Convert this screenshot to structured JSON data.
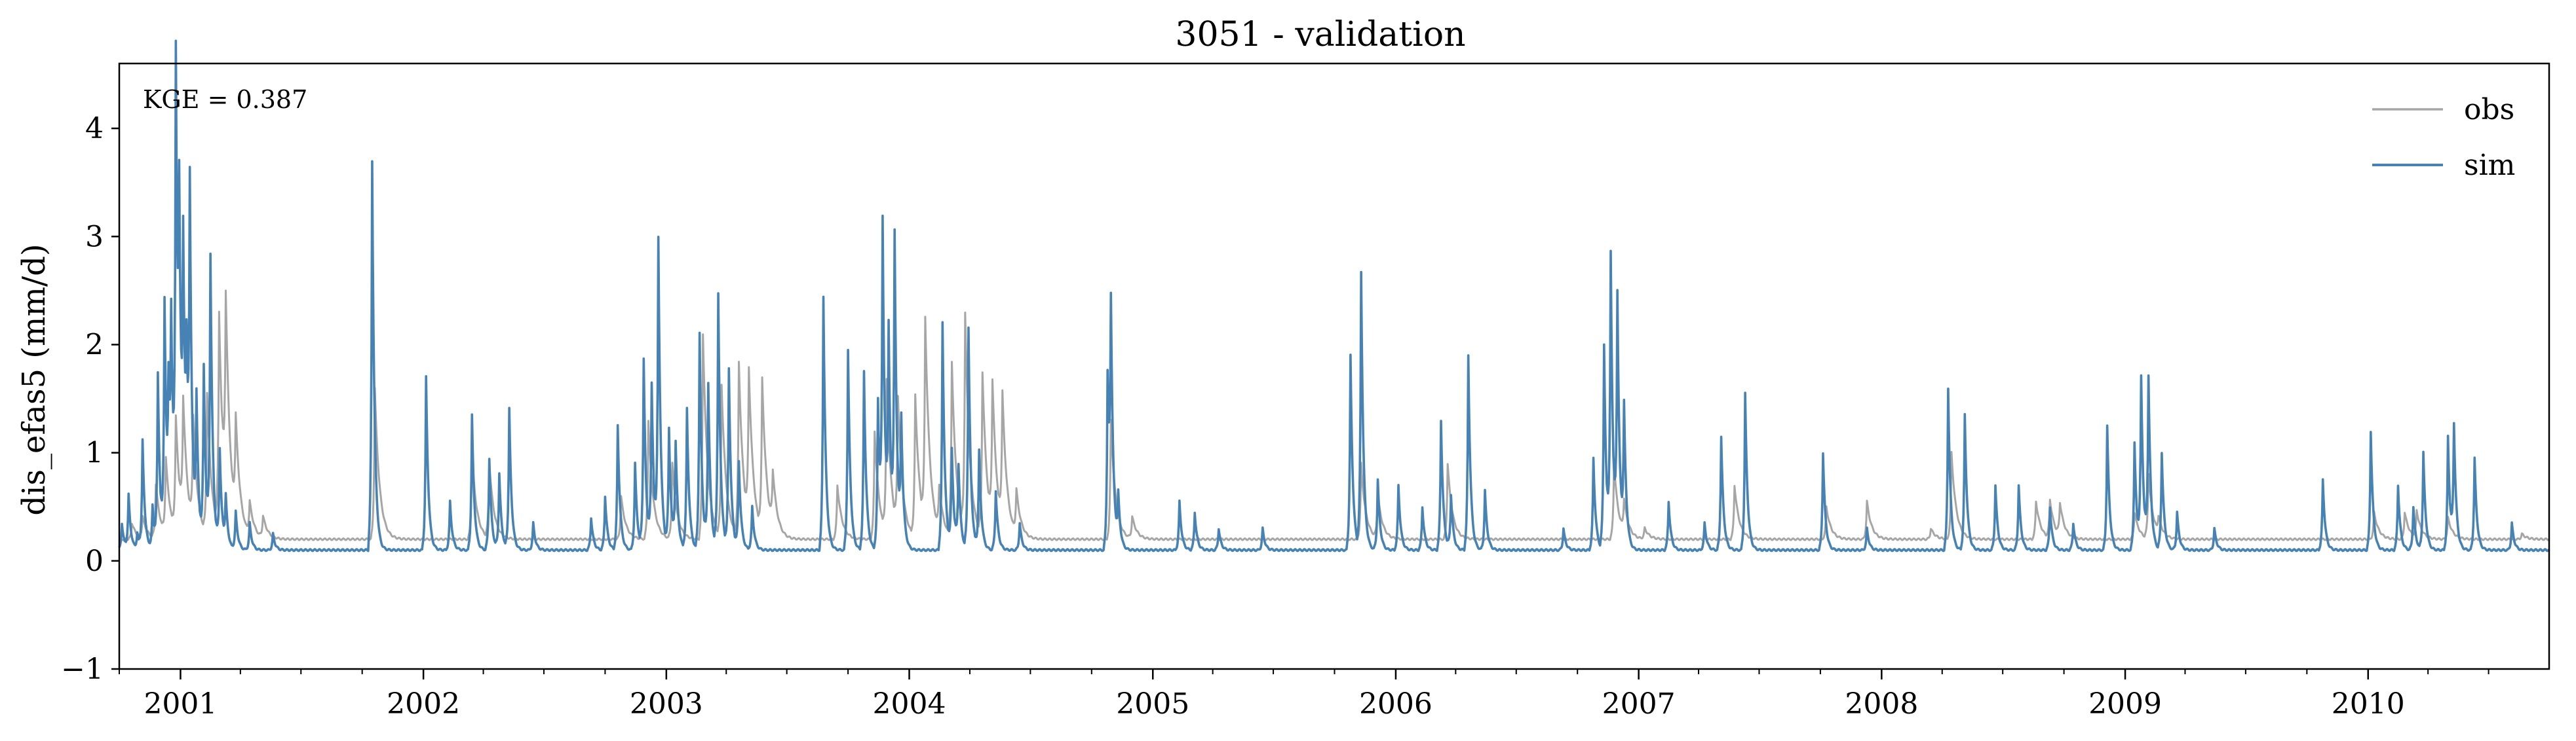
{
  "chart_data": {
    "type": "line",
    "title": "3051 - validation",
    "xlabel": "",
    "ylabel": "dis_efas5 (mm/d)",
    "annotation": "KGE = 0.387",
    "xlim": [
      "2000-10-01",
      "2010-09-30"
    ],
    "ylim": [
      -1,
      4.6
    ],
    "grid": false,
    "legend": "top-right",
    "y_ticks": [
      {
        "value": -1,
        "label": "−1"
      },
      {
        "value": 0,
        "label": "0"
      },
      {
        "value": 1,
        "label": "1"
      },
      {
        "value": 2,
        "label": "2"
      },
      {
        "value": 3,
        "label": "3"
      },
      {
        "value": 4,
        "label": "4"
      }
    ],
    "x_ticks": [
      {
        "date": "2001-01-01",
        "label": "2001"
      },
      {
        "date": "2002-01-01",
        "label": "2002"
      },
      {
        "date": "2003-01-01",
        "label": "2003"
      },
      {
        "date": "2004-01-01",
        "label": "2004"
      },
      {
        "date": "2005-01-01",
        "label": "2005"
      },
      {
        "date": "2006-01-01",
        "label": "2006"
      },
      {
        "date": "2007-01-01",
        "label": "2007"
      },
      {
        "date": "2008-01-01",
        "label": "2008"
      },
      {
        "date": "2009-01-01",
        "label": "2009"
      },
      {
        "date": "2010-01-01",
        "label": "2010"
      }
    ],
    "series": [
      {
        "name": "obs",
        "color": "#a6a6a6",
        "baseline": 0.2,
        "peaks": [
          [
            "2000-10-20",
            0.35
          ],
          [
            "2000-11-05",
            0.4
          ],
          [
            "2000-11-25",
            0.7
          ],
          [
            "2000-12-10",
            0.9
          ],
          [
            "2000-12-25",
            1.25
          ],
          [
            "2001-01-05",
            1.3
          ],
          [
            "2001-01-20",
            1.2
          ],
          [
            "2001-02-10",
            1.5
          ],
          [
            "2001-02-28",
            2.2
          ],
          [
            "2001-03-10",
            2.0
          ],
          [
            "2001-03-25",
            1.1
          ],
          [
            "2001-04-15",
            0.5
          ],
          [
            "2001-05-05",
            0.4
          ],
          [
            "2001-10-20",
            1.6
          ],
          [
            "2002-03-15",
            1.0
          ],
          [
            "2002-04-10",
            0.9
          ],
          [
            "2002-10-25",
            0.6
          ],
          [
            "2002-12-05",
            1.3
          ],
          [
            "2003-01-10",
            0.9
          ],
          [
            "2003-02-25",
            2.1
          ],
          [
            "2003-03-25",
            1.6
          ],
          [
            "2003-04-20",
            1.8
          ],
          [
            "2003-05-05",
            1.6
          ],
          [
            "2003-05-25",
            1.6
          ],
          [
            "2003-06-10",
            0.7
          ],
          [
            "2003-09-15",
            0.7
          ],
          [
            "2003-11-10",
            1.2
          ],
          [
            "2003-11-28",
            1.6
          ],
          [
            "2003-12-15",
            1.4
          ],
          [
            "2004-01-10",
            1.5
          ],
          [
            "2004-01-25",
            2.1
          ],
          [
            "2004-02-15",
            0.6
          ],
          [
            "2004-03-05",
            1.8
          ],
          [
            "2004-03-25",
            2.2
          ],
          [
            "2004-04-20",
            1.7
          ],
          [
            "2004-05-05",
            1.5
          ],
          [
            "2004-05-20",
            1.4
          ],
          [
            "2004-06-10",
            0.6
          ],
          [
            "2004-10-30",
            1.3
          ],
          [
            "2004-12-01",
            0.4
          ],
          [
            "2005-11-10",
            0.9
          ],
          [
            "2005-12-05",
            0.6
          ],
          [
            "2006-03-20",
            0.9
          ],
          [
            "2006-11-25",
            0.9
          ],
          [
            "2006-12-10",
            0.5
          ],
          [
            "2007-01-10",
            0.3
          ],
          [
            "2007-05-25",
            0.7
          ],
          [
            "2007-10-10",
            0.5
          ],
          [
            "2007-12-10",
            0.55
          ],
          [
            "2008-03-15",
            0.3
          ],
          [
            "2008-04-15",
            1.0
          ],
          [
            "2008-08-20",
            0.55
          ],
          [
            "2008-09-10",
            0.55
          ],
          [
            "2008-09-25",
            0.5
          ],
          [
            "2009-01-15",
            0.45
          ],
          [
            "2009-02-05",
            0.8
          ],
          [
            "2009-02-20",
            0.35
          ],
          [
            "2010-01-10",
            0.45
          ],
          [
            "2010-02-25",
            0.45
          ],
          [
            "2010-03-15",
            0.45
          ],
          [
            "2010-05-01",
            0.4
          ],
          [
            "2010-08-20",
            0.25
          ]
        ]
      },
      {
        "name": "sim",
        "color": "#4682b4",
        "baseline": 0.1,
        "peaks": [
          [
            "2000-10-05",
            0.35
          ],
          [
            "2000-10-15",
            0.6
          ],
          [
            "2000-10-28",
            0.25
          ],
          [
            "2000-11-05",
            1.1
          ],
          [
            "2000-11-20",
            0.5
          ],
          [
            "2000-11-28",
            1.7
          ],
          [
            "2000-12-08",
            2.35
          ],
          [
            "2000-12-14",
            1.3
          ],
          [
            "2000-12-18",
            1.9
          ],
          [
            "2000-12-25",
            4.4
          ],
          [
            "2000-12-30",
            2.6
          ],
          [
            "2001-01-05",
            2.5
          ],
          [
            "2001-01-10",
            1.4
          ],
          [
            "2001-01-15",
            3.15
          ],
          [
            "2001-01-25",
            1.4
          ],
          [
            "2001-02-05",
            1.75
          ],
          [
            "2001-02-15",
            2.75
          ],
          [
            "2001-03-01",
            1.0
          ],
          [
            "2001-03-10",
            0.55
          ],
          [
            "2001-03-25",
            0.45
          ],
          [
            "2001-04-15",
            0.35
          ],
          [
            "2001-05-20",
            0.25
          ],
          [
            "2001-10-16",
            3.7
          ],
          [
            "2002-01-05",
            1.7
          ],
          [
            "2002-02-10",
            0.55
          ],
          [
            "2002-03-15",
            1.35
          ],
          [
            "2002-04-10",
            0.95
          ],
          [
            "2002-04-25",
            0.8
          ],
          [
            "2002-05-10",
            1.4
          ],
          [
            "2002-06-15",
            0.35
          ],
          [
            "2002-09-10",
            0.4
          ],
          [
            "2002-10-01",
            0.6
          ],
          [
            "2002-10-20",
            1.25
          ],
          [
            "2002-11-15",
            0.9
          ],
          [
            "2002-11-28",
            1.85
          ],
          [
            "2002-12-10",
            1.6
          ],
          [
            "2002-12-20",
            2.9
          ],
          [
            "2003-01-05",
            1.2
          ],
          [
            "2003-01-15",
            1.05
          ],
          [
            "2003-02-01",
            1.4
          ],
          [
            "2003-02-20",
            2.1
          ],
          [
            "2003-03-05",
            1.6
          ],
          [
            "2003-03-20",
            2.45
          ],
          [
            "2003-04-05",
            1.75
          ],
          [
            "2003-04-20",
            0.9
          ],
          [
            "2003-05-10",
            0.5
          ],
          [
            "2003-08-25",
            2.45
          ],
          [
            "2003-10-01",
            1.95
          ],
          [
            "2003-10-25",
            1.75
          ],
          [
            "2003-11-15",
            1.5
          ],
          [
            "2003-11-22",
            3.0
          ],
          [
            "2003-12-01",
            2.0
          ],
          [
            "2003-12-10",
            2.9
          ],
          [
            "2003-12-20",
            1.2
          ],
          [
            "2004-02-20",
            2.2
          ],
          [
            "2004-03-05",
            1.0
          ],
          [
            "2004-03-15",
            0.85
          ],
          [
            "2004-03-30",
            2.15
          ],
          [
            "2004-04-15",
            1.0
          ],
          [
            "2004-05-10",
            0.65
          ],
          [
            "2004-06-15",
            0.35
          ],
          [
            "2004-10-25",
            1.7
          ],
          [
            "2004-10-30",
            2.1
          ],
          [
            "2004-11-10",
            0.55
          ],
          [
            "2005-02-10",
            0.55
          ],
          [
            "2005-03-05",
            0.45
          ],
          [
            "2005-04-10",
            0.3
          ],
          [
            "2005-06-15",
            0.3
          ],
          [
            "2005-10-25",
            1.9
          ],
          [
            "2005-11-10",
            2.65
          ],
          [
            "2005-12-05",
            0.75
          ],
          [
            "2006-01-05",
            0.7
          ],
          [
            "2006-02-10",
            0.5
          ],
          [
            "2006-03-10",
            1.3
          ],
          [
            "2006-03-25",
            0.6
          ],
          [
            "2006-04-20",
            1.9
          ],
          [
            "2006-05-15",
            0.65
          ],
          [
            "2006-09-10",
            0.3
          ],
          [
            "2006-10-25",
            0.95
          ],
          [
            "2006-11-10",
            2.0
          ],
          [
            "2006-11-20",
            2.75
          ],
          [
            "2006-11-30",
            2.35
          ],
          [
            "2006-12-10",
            1.35
          ],
          [
            "2007-02-15",
            0.55
          ],
          [
            "2007-04-10",
            0.35
          ],
          [
            "2007-05-05",
            1.15
          ],
          [
            "2007-06-10",
            1.55
          ],
          [
            "2007-10-05",
            1.0
          ],
          [
            "2007-12-10",
            0.3
          ],
          [
            "2008-04-10",
            1.6
          ],
          [
            "2008-05-05",
            1.35
          ],
          [
            "2008-06-20",
            0.7
          ],
          [
            "2008-07-25",
            0.7
          ],
          [
            "2008-09-10",
            0.5
          ],
          [
            "2008-10-15",
            0.35
          ],
          [
            "2008-12-05",
            1.25
          ],
          [
            "2009-01-15",
            1.1
          ],
          [
            "2009-01-25",
            1.65
          ],
          [
            "2009-02-05",
            1.65
          ],
          [
            "2009-02-25",
            1.0
          ],
          [
            "2009-03-20",
            0.45
          ],
          [
            "2009-05-15",
            0.3
          ],
          [
            "2009-10-25",
            0.75
          ],
          [
            "2010-01-05",
            1.2
          ],
          [
            "2010-02-15",
            0.7
          ],
          [
            "2010-03-10",
            0.5
          ],
          [
            "2010-03-25",
            1.0
          ],
          [
            "2010-05-01",
            1.15
          ],
          [
            "2010-05-10",
            1.2
          ],
          [
            "2010-06-10",
            0.95
          ],
          [
            "2010-08-05",
            0.35
          ]
        ]
      }
    ]
  }
}
